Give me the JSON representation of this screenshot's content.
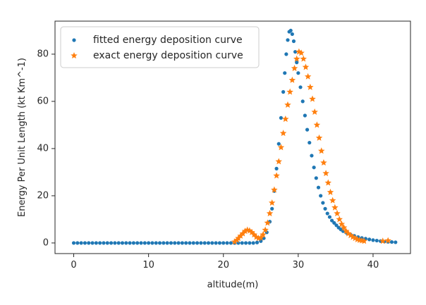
{
  "chart_data": {
    "type": "scatter",
    "title": "",
    "xlabel": "altitude(m)",
    "ylabel": "Energy Per Unit Length (kt Km^-1)",
    "xlim": [
      -2.5,
      45
    ],
    "ylim": [
      -4.5,
      94
    ],
    "x_ticks": [
      "0",
      "10",
      "20",
      "30",
      "40"
    ],
    "y_ticks": [
      "0",
      "20",
      "40",
      "60",
      "80"
    ],
    "grid": false,
    "legend_position": "top-left",
    "series": [
      {
        "name": "fitted energy deposition curve",
        "marker": "dot",
        "color": "#1f77b4",
        "points": [
          [
            0.0,
            0.0
          ],
          [
            0.5,
            0.0
          ],
          [
            1.0,
            0.0
          ],
          [
            1.5,
            0.0
          ],
          [
            2.0,
            0.0
          ],
          [
            2.5,
            0.0
          ],
          [
            3.0,
            0.0
          ],
          [
            3.5,
            0.0
          ],
          [
            4.0,
            0.0
          ],
          [
            4.5,
            0.0
          ],
          [
            5.0,
            0.0
          ],
          [
            5.5,
            0.0
          ],
          [
            6.0,
            0.0
          ],
          [
            6.5,
            0.0
          ],
          [
            7.0,
            0.0
          ],
          [
            7.5,
            0.0
          ],
          [
            8.0,
            0.0
          ],
          [
            8.5,
            0.0
          ],
          [
            9.0,
            0.0
          ],
          [
            9.5,
            0.0
          ],
          [
            10.0,
            0.0
          ],
          [
            10.5,
            0.0
          ],
          [
            11.0,
            0.0
          ],
          [
            11.5,
            0.0
          ],
          [
            12.0,
            0.0
          ],
          [
            12.5,
            0.0
          ],
          [
            13.0,
            0.0
          ],
          [
            13.5,
            0.0
          ],
          [
            14.0,
            0.0
          ],
          [
            14.5,
            0.0
          ],
          [
            15.0,
            0.0
          ],
          [
            15.5,
            0.0
          ],
          [
            16.0,
            0.0
          ],
          [
            16.5,
            0.0
          ],
          [
            17.0,
            0.0
          ],
          [
            17.5,
            0.0
          ],
          [
            18.0,
            0.0
          ],
          [
            18.5,
            0.0
          ],
          [
            19.0,
            0.0
          ],
          [
            19.5,
            0.0
          ],
          [
            20.0,
            0.0
          ],
          [
            20.5,
            0.0
          ],
          [
            21.0,
            0.0
          ],
          [
            21.5,
            0.0
          ],
          [
            22.0,
            0.0
          ],
          [
            22.5,
            0.0
          ],
          [
            23.0,
            0.0
          ],
          [
            23.5,
            0.0
          ],
          [
            24.0,
            0.0
          ],
          [
            24.5,
            0.2
          ],
          [
            25.0,
            0.8
          ],
          [
            25.4,
            2.0
          ],
          [
            25.8,
            4.5
          ],
          [
            26.2,
            9.0
          ],
          [
            26.5,
            14.5
          ],
          [
            26.8,
            22.0
          ],
          [
            27.1,
            31.5
          ],
          [
            27.4,
            42.0
          ],
          [
            27.7,
            53.0
          ],
          [
            28.0,
            64.0
          ],
          [
            28.2,
            72.0
          ],
          [
            28.4,
            80.0
          ],
          [
            28.6,
            86.0
          ],
          [
            28.8,
            89.5
          ],
          [
            29.0,
            90.0
          ],
          [
            29.2,
            88.5
          ],
          [
            29.4,
            85.5
          ],
          [
            29.6,
            81.0
          ],
          [
            29.8,
            76.5
          ],
          [
            30.0,
            72.0
          ],
          [
            30.3,
            66.0
          ],
          [
            30.6,
            60.0
          ],
          [
            30.9,
            54.0
          ],
          [
            31.2,
            48.0
          ],
          [
            31.5,
            42.5
          ],
          [
            31.8,
            37.0
          ],
          [
            32.1,
            32.0
          ],
          [
            32.4,
            27.5
          ],
          [
            32.7,
            23.5
          ],
          [
            33.0,
            20.0
          ],
          [
            33.3,
            17.0
          ],
          [
            33.6,
            14.5
          ],
          [
            33.9,
            12.5
          ],
          [
            34.2,
            11.0
          ],
          [
            34.5,
            9.5
          ],
          [
            34.8,
            8.5
          ],
          [
            35.1,
            7.5
          ],
          [
            35.4,
            6.5
          ],
          [
            35.7,
            5.7
          ],
          [
            36.0,
            5.0
          ],
          [
            36.5,
            4.2
          ],
          [
            37.0,
            3.5
          ],
          [
            37.5,
            3.0
          ],
          [
            38.0,
            2.5
          ],
          [
            38.5,
            2.1
          ],
          [
            39.0,
            1.8
          ],
          [
            39.5,
            1.5
          ],
          [
            40.0,
            1.2
          ],
          [
            40.5,
            1.0
          ],
          [
            41.0,
            0.8
          ],
          [
            41.5,
            0.6
          ],
          [
            42.0,
            0.5
          ],
          [
            42.5,
            0.4
          ],
          [
            43.0,
            0.3
          ]
        ]
      },
      {
        "name": "exact energy deposition curve",
        "marker": "star",
        "color": "#ff7f0e",
        "points": [
          [
            21.5,
            0.5
          ],
          [
            21.8,
            1.2
          ],
          [
            22.0,
            2.0
          ],
          [
            22.3,
            3.0
          ],
          [
            22.6,
            4.0
          ],
          [
            22.9,
            5.0
          ],
          [
            23.2,
            5.5
          ],
          [
            23.5,
            5.2
          ],
          [
            23.8,
            4.5
          ],
          [
            24.1,
            3.5
          ],
          [
            24.4,
            2.5
          ],
          [
            24.7,
            2.0
          ],
          [
            25.0,
            2.2
          ],
          [
            25.3,
            3.5
          ],
          [
            25.6,
            5.5
          ],
          [
            25.9,
            8.5
          ],
          [
            26.2,
            12.5
          ],
          [
            26.5,
            17.0
          ],
          [
            26.8,
            22.5
          ],
          [
            27.1,
            28.5
          ],
          [
            27.4,
            34.5
          ],
          [
            27.7,
            40.5
          ],
          [
            28.0,
            46.5
          ],
          [
            28.3,
            52.5
          ],
          [
            28.6,
            58.5
          ],
          [
            28.9,
            64.0
          ],
          [
            29.2,
            69.0
          ],
          [
            29.5,
            74.0
          ],
          [
            29.8,
            78.0
          ],
          [
            30.1,
            81.0
          ],
          [
            30.4,
            80.5
          ],
          [
            30.7,
            78.0
          ],
          [
            31.0,
            74.5
          ],
          [
            31.3,
            70.5
          ],
          [
            31.6,
            66.0
          ],
          [
            31.9,
            61.0
          ],
          [
            32.2,
            55.5
          ],
          [
            32.5,
            50.0
          ],
          [
            32.8,
            44.5
          ],
          [
            33.1,
            39.0
          ],
          [
            33.4,
            34.0
          ],
          [
            33.7,
            29.5
          ],
          [
            34.0,
            25.5
          ],
          [
            34.3,
            21.5
          ],
          [
            34.6,
            18.0
          ],
          [
            34.9,
            15.0
          ],
          [
            35.2,
            12.5
          ],
          [
            35.5,
            10.0
          ],
          [
            35.8,
            8.0
          ],
          [
            36.1,
            6.5
          ],
          [
            36.4,
            5.0
          ],
          [
            36.7,
            4.0
          ],
          [
            37.0,
            3.2
          ],
          [
            37.3,
            2.5
          ],
          [
            37.6,
            2.0
          ],
          [
            37.9,
            1.5
          ],
          [
            38.2,
            1.2
          ],
          [
            38.5,
            1.0
          ],
          [
            38.8,
            0.8
          ],
          [
            41.3,
            0.8
          ],
          [
            42.0,
            1.0
          ]
        ]
      }
    ]
  }
}
